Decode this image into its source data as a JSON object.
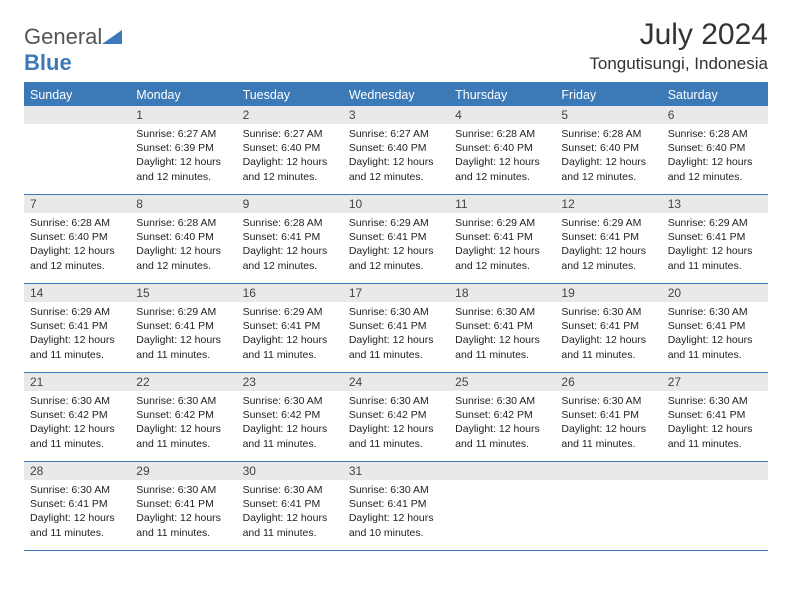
{
  "brand": {
    "part1": "General",
    "part2": "Blue"
  },
  "title": "July 2024",
  "location": "Tongutisungi, Indonesia",
  "colors": {
    "accent": "#3b79b7",
    "dow_bg": "#3b79b7",
    "dow_text": "#ffffff",
    "daynum_bg": "#e9e9e9",
    "text": "#222222",
    "page_bg": "#ffffff"
  },
  "typography": {
    "title_fontsize": 30,
    "location_fontsize": 17,
    "dow_fontsize": 12.5,
    "daynum_fontsize": 12,
    "body_fontsize": 10.5
  },
  "day_names": [
    "Sunday",
    "Monday",
    "Tuesday",
    "Wednesday",
    "Thursday",
    "Friday",
    "Saturday"
  ],
  "weeks": [
    [
      {
        "n": "",
        "lines": []
      },
      {
        "n": "1",
        "lines": [
          "Sunrise: 6:27 AM",
          "Sunset: 6:39 PM",
          "Daylight: 12 hours",
          "and 12 minutes."
        ]
      },
      {
        "n": "2",
        "lines": [
          "Sunrise: 6:27 AM",
          "Sunset: 6:40 PM",
          "Daylight: 12 hours",
          "and 12 minutes."
        ]
      },
      {
        "n": "3",
        "lines": [
          "Sunrise: 6:27 AM",
          "Sunset: 6:40 PM",
          "Daylight: 12 hours",
          "and 12 minutes."
        ]
      },
      {
        "n": "4",
        "lines": [
          "Sunrise: 6:28 AM",
          "Sunset: 6:40 PM",
          "Daylight: 12 hours",
          "and 12 minutes."
        ]
      },
      {
        "n": "5",
        "lines": [
          "Sunrise: 6:28 AM",
          "Sunset: 6:40 PM",
          "Daylight: 12 hours",
          "and 12 minutes."
        ]
      },
      {
        "n": "6",
        "lines": [
          "Sunrise: 6:28 AM",
          "Sunset: 6:40 PM",
          "Daylight: 12 hours",
          "and 12 minutes."
        ]
      }
    ],
    [
      {
        "n": "7",
        "lines": [
          "Sunrise: 6:28 AM",
          "Sunset: 6:40 PM",
          "Daylight: 12 hours",
          "and 12 minutes."
        ]
      },
      {
        "n": "8",
        "lines": [
          "Sunrise: 6:28 AM",
          "Sunset: 6:40 PM",
          "Daylight: 12 hours",
          "and 12 minutes."
        ]
      },
      {
        "n": "9",
        "lines": [
          "Sunrise: 6:28 AM",
          "Sunset: 6:41 PM",
          "Daylight: 12 hours",
          "and 12 minutes."
        ]
      },
      {
        "n": "10",
        "lines": [
          "Sunrise: 6:29 AM",
          "Sunset: 6:41 PM",
          "Daylight: 12 hours",
          "and 12 minutes."
        ]
      },
      {
        "n": "11",
        "lines": [
          "Sunrise: 6:29 AM",
          "Sunset: 6:41 PM",
          "Daylight: 12 hours",
          "and 12 minutes."
        ]
      },
      {
        "n": "12",
        "lines": [
          "Sunrise: 6:29 AM",
          "Sunset: 6:41 PM",
          "Daylight: 12 hours",
          "and 12 minutes."
        ]
      },
      {
        "n": "13",
        "lines": [
          "Sunrise: 6:29 AM",
          "Sunset: 6:41 PM",
          "Daylight: 12 hours",
          "and 11 minutes."
        ]
      }
    ],
    [
      {
        "n": "14",
        "lines": [
          "Sunrise: 6:29 AM",
          "Sunset: 6:41 PM",
          "Daylight: 12 hours",
          "and 11 minutes."
        ]
      },
      {
        "n": "15",
        "lines": [
          "Sunrise: 6:29 AM",
          "Sunset: 6:41 PM",
          "Daylight: 12 hours",
          "and 11 minutes."
        ]
      },
      {
        "n": "16",
        "lines": [
          "Sunrise: 6:29 AM",
          "Sunset: 6:41 PM",
          "Daylight: 12 hours",
          "and 11 minutes."
        ]
      },
      {
        "n": "17",
        "lines": [
          "Sunrise: 6:30 AM",
          "Sunset: 6:41 PM",
          "Daylight: 12 hours",
          "and 11 minutes."
        ]
      },
      {
        "n": "18",
        "lines": [
          "Sunrise: 6:30 AM",
          "Sunset: 6:41 PM",
          "Daylight: 12 hours",
          "and 11 minutes."
        ]
      },
      {
        "n": "19",
        "lines": [
          "Sunrise: 6:30 AM",
          "Sunset: 6:41 PM",
          "Daylight: 12 hours",
          "and 11 minutes."
        ]
      },
      {
        "n": "20",
        "lines": [
          "Sunrise: 6:30 AM",
          "Sunset: 6:41 PM",
          "Daylight: 12 hours",
          "and 11 minutes."
        ]
      }
    ],
    [
      {
        "n": "21",
        "lines": [
          "Sunrise: 6:30 AM",
          "Sunset: 6:42 PM",
          "Daylight: 12 hours",
          "and 11 minutes."
        ]
      },
      {
        "n": "22",
        "lines": [
          "Sunrise: 6:30 AM",
          "Sunset: 6:42 PM",
          "Daylight: 12 hours",
          "and 11 minutes."
        ]
      },
      {
        "n": "23",
        "lines": [
          "Sunrise: 6:30 AM",
          "Sunset: 6:42 PM",
          "Daylight: 12 hours",
          "and 11 minutes."
        ]
      },
      {
        "n": "24",
        "lines": [
          "Sunrise: 6:30 AM",
          "Sunset: 6:42 PM",
          "Daylight: 12 hours",
          "and 11 minutes."
        ]
      },
      {
        "n": "25",
        "lines": [
          "Sunrise: 6:30 AM",
          "Sunset: 6:42 PM",
          "Daylight: 12 hours",
          "and 11 minutes."
        ]
      },
      {
        "n": "26",
        "lines": [
          "Sunrise: 6:30 AM",
          "Sunset: 6:41 PM",
          "Daylight: 12 hours",
          "and 11 minutes."
        ]
      },
      {
        "n": "27",
        "lines": [
          "Sunrise: 6:30 AM",
          "Sunset: 6:41 PM",
          "Daylight: 12 hours",
          "and 11 minutes."
        ]
      }
    ],
    [
      {
        "n": "28",
        "lines": [
          "Sunrise: 6:30 AM",
          "Sunset: 6:41 PM",
          "Daylight: 12 hours",
          "and 11 minutes."
        ]
      },
      {
        "n": "29",
        "lines": [
          "Sunrise: 6:30 AM",
          "Sunset: 6:41 PM",
          "Daylight: 12 hours",
          "and 11 minutes."
        ]
      },
      {
        "n": "30",
        "lines": [
          "Sunrise: 6:30 AM",
          "Sunset: 6:41 PM",
          "Daylight: 12 hours",
          "and 11 minutes."
        ]
      },
      {
        "n": "31",
        "lines": [
          "Sunrise: 6:30 AM",
          "Sunset: 6:41 PM",
          "Daylight: 12 hours",
          "and 10 minutes."
        ]
      },
      {
        "n": "",
        "lines": []
      },
      {
        "n": "",
        "lines": []
      },
      {
        "n": "",
        "lines": []
      }
    ]
  ]
}
